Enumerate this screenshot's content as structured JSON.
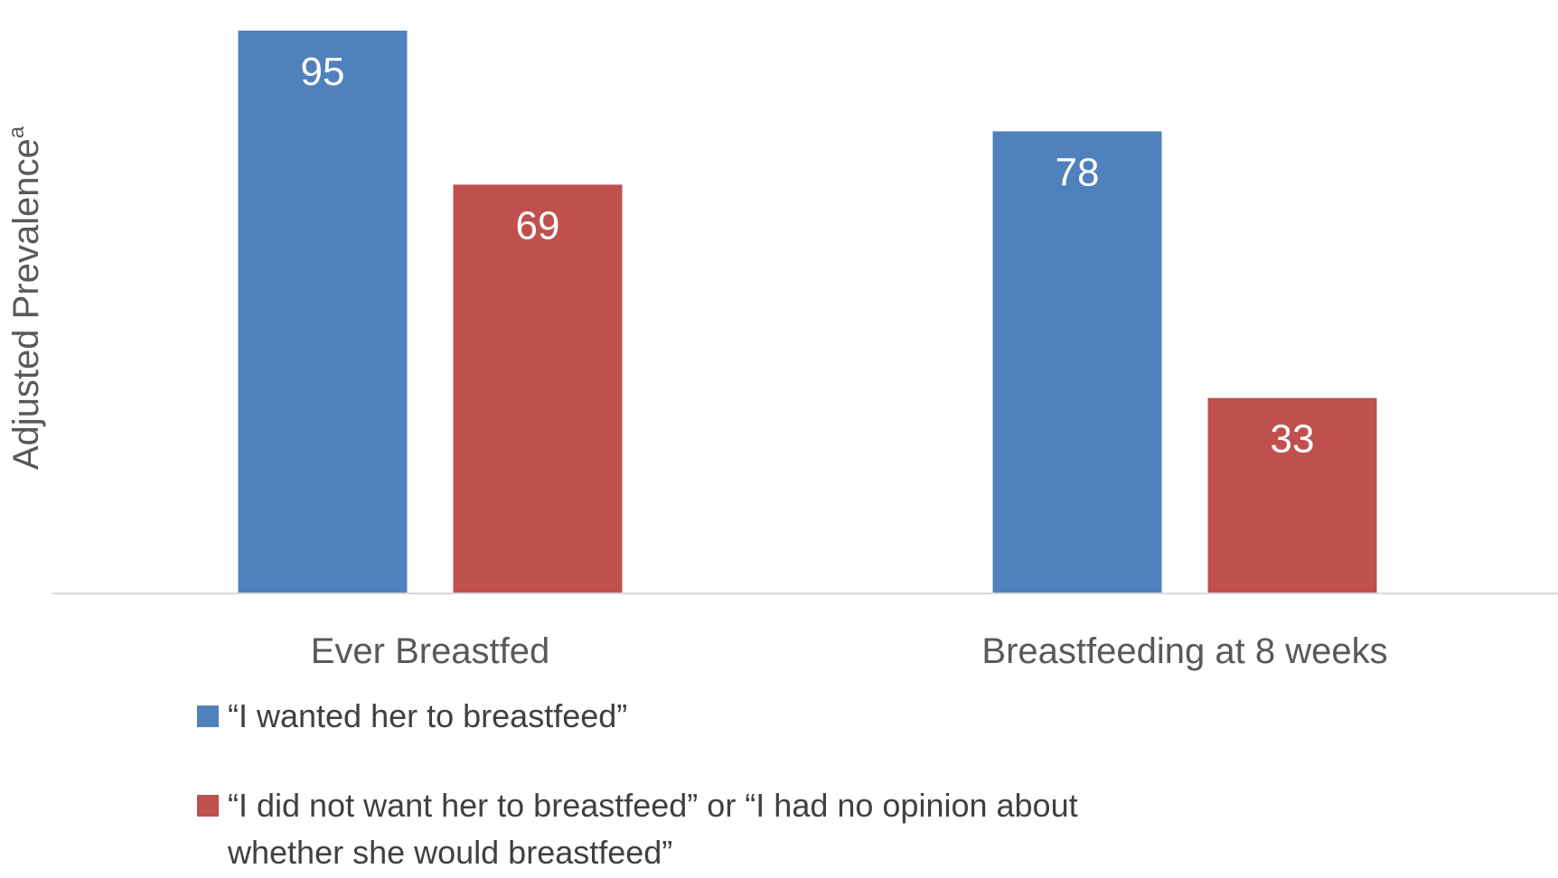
{
  "chart_data": {
    "type": "bar",
    "title": "",
    "ylabel": "Adjusted Prevalence",
    "ylabel_superscript": "a",
    "xlabel": "",
    "categories": [
      "Ever Breastfed",
      "Breastfeeding at 8 weeks"
    ],
    "ylim": [
      0,
      100
    ],
    "grid": false,
    "legend_placement": "bottom",
    "series": [
      {
        "name": "“I wanted her to breastfeed”",
        "color": "#4F81BD",
        "values": [
          95,
          78
        ]
      },
      {
        "name": "“I did not want her to breastfeed” or “I had no opinion about whether she would breastfeed”",
        "name_lines": [
          "“I did not want her to breastfeed” or “I had no opinion about",
          "whether she would breastfeed”"
        ],
        "color": "#C0504D",
        "values": [
          69,
          33
        ]
      }
    ]
  }
}
